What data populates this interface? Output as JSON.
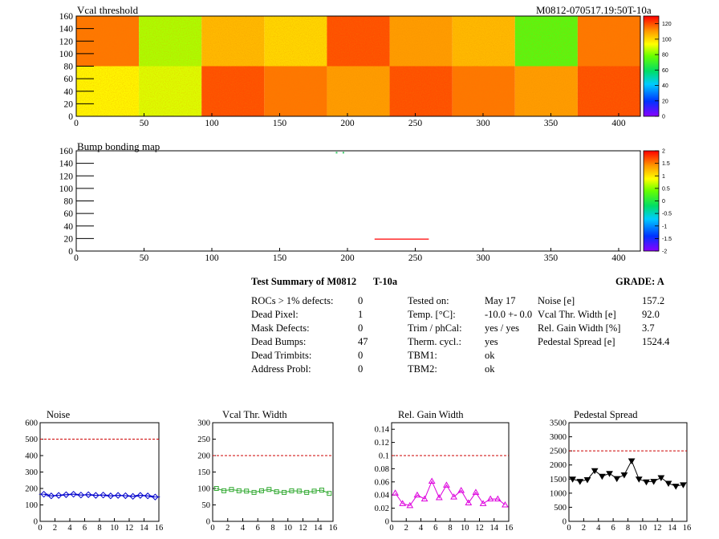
{
  "header_right": "M0812-070517.19:50T-10a",
  "maps": [
    {
      "title": "Vcal threshold",
      "xlim": [
        0,
        416
      ],
      "ylim": [
        0,
        160
      ],
      "x_ticks": [
        0,
        50,
        100,
        150,
        200,
        250,
        300,
        350,
        400
      ],
      "y_ticks": [
        0,
        20,
        40,
        60,
        80,
        100,
        120,
        140,
        160
      ],
      "z_ticks": [
        0,
        20,
        40,
        60,
        80,
        100,
        120
      ],
      "z_range": [
        0,
        130
      ],
      "roc_levels_top": [
        115,
        85,
        105,
        100,
        120,
        110,
        105,
        75,
        115
      ],
      "roc_levels_bottom": [
        95,
        90,
        120,
        115,
        110,
        120,
        115,
        110,
        120
      ]
    },
    {
      "title": "Bump bonding map",
      "xlim": [
        0,
        416
      ],
      "ylim": [
        0,
        160
      ],
      "x_ticks": [
        0,
        50,
        100,
        150,
        200,
        250,
        300,
        350,
        400
      ],
      "y_ticks": [
        0,
        20,
        40,
        60,
        80,
        100,
        120,
        140,
        160
      ],
      "z_ticks": [
        -2,
        -1.5,
        -1,
        -0.5,
        0,
        0.5,
        1,
        1.5,
        2
      ],
      "z_range": [
        -2,
        2
      ],
      "defect_segment": {
        "x0": 220,
        "x1": 260,
        "y": 19
      },
      "dead_pixel_marks": [
        {
          "x": 192,
          "y": 157
        },
        {
          "x": 197,
          "y": 157
        }
      ]
    }
  ],
  "summary": {
    "title": "Test Summary of M0812",
    "temp_label": "T-10a",
    "grade": "GRADE:  A",
    "col1": [
      {
        "label": "ROCs > 1% defects:",
        "value": "0"
      },
      {
        "label": "Dead Pixel:",
        "value": "1"
      },
      {
        "label": "Mask Defects:",
        "value": "0"
      },
      {
        "label": "Dead Bumps:",
        "value": "47"
      },
      {
        "label": "Dead Trimbits:",
        "value": "0"
      },
      {
        "label": "Address Probl:",
        "value": "0"
      }
    ],
    "col2": [
      {
        "label": "Tested on:",
        "value": "May 17"
      },
      {
        "label": "Temp. [°C]:",
        "value": "-10.0 +- 0.0"
      },
      {
        "label": "Trim / phCal:",
        "value": "yes / yes"
      },
      {
        "label": "Therm. cycl.:",
        "value": "yes"
      },
      {
        "label": "TBM1:",
        "value": "ok"
      },
      {
        "label": "TBM2:",
        "value": "ok"
      }
    ],
    "col3": [
      {
        "label": "Noise [e]",
        "value": "157.2"
      },
      {
        "label": "Vcal Thr. Width [e]",
        "value": "92.0"
      },
      {
        "label": "Rel. Gain Width [%]",
        "value": "3.7"
      },
      {
        "label": "Pedestal Spread [e]",
        "value": "1524.4"
      }
    ]
  },
  "chart_data": [
    {
      "type": "line",
      "title": "Noise",
      "x": [
        0,
        1,
        2,
        3,
        4,
        5,
        6,
        7,
        8,
        9,
        10,
        11,
        12,
        13,
        14,
        15
      ],
      "values": [
        165,
        155,
        158,
        162,
        165,
        160,
        162,
        158,
        160,
        155,
        158,
        156,
        152,
        158,
        155,
        148
      ],
      "xlim": [
        0,
        16
      ],
      "ylim": [
        0,
        600
      ],
      "x_ticks": [
        0,
        2,
        4,
        6,
        8,
        10,
        12,
        14,
        16
      ],
      "y_ticks": [
        0,
        100,
        200,
        300,
        400,
        500,
        600
      ],
      "limit": 500,
      "color": "#0000cc",
      "marker": "diamond"
    },
    {
      "type": "line",
      "title": "Vcal Thr. Width",
      "x": [
        0,
        1,
        2,
        3,
        4,
        5,
        6,
        7,
        8,
        9,
        10,
        11,
        12,
        13,
        14,
        15
      ],
      "values": [
        100,
        93,
        97,
        93,
        92,
        88,
        93,
        97,
        90,
        88,
        93,
        92,
        88,
        92,
        95,
        85
      ],
      "xlim": [
        0,
        16
      ],
      "ylim": [
        0,
        300
      ],
      "x_ticks": [
        0,
        2,
        4,
        6,
        8,
        10,
        12,
        14,
        16
      ],
      "y_ticks": [
        0,
        50,
        100,
        150,
        200,
        250,
        300
      ],
      "limit": 200,
      "color": "#33aa33",
      "marker": "square"
    },
    {
      "type": "line",
      "title": "Rel. Gain Width",
      "x": [
        0,
        1,
        2,
        3,
        4,
        5,
        6,
        7,
        8,
        9,
        10,
        11,
        12,
        13,
        14,
        15
      ],
      "values": [
        0.043,
        0.027,
        0.024,
        0.04,
        0.034,
        0.061,
        0.036,
        0.055,
        0.037,
        0.047,
        0.028,
        0.044,
        0.027,
        0.034,
        0.034,
        0.025
      ],
      "xlim": [
        0,
        16
      ],
      "ylim": [
        0,
        0.15
      ],
      "x_ticks": [
        0,
        2,
        4,
        6,
        8,
        10,
        12,
        14,
        16
      ],
      "y_ticks": [
        0,
        0.02,
        0.04,
        0.06,
        0.08,
        0.1,
        0.12,
        0.14
      ],
      "limit": 0.1,
      "color": "#dd00dd",
      "marker": "triangle"
    },
    {
      "type": "line",
      "title": "Pedestal Spread",
      "x": [
        0,
        1,
        2,
        3,
        4,
        5,
        6,
        7,
        8,
        9,
        10,
        11,
        12,
        13,
        14,
        15
      ],
      "values": [
        1500,
        1420,
        1480,
        1800,
        1600,
        1700,
        1520,
        1650,
        2150,
        1500,
        1400,
        1420,
        1550,
        1350,
        1250,
        1300
      ],
      "xlim": [
        0,
        16
      ],
      "ylim": [
        0,
        3500
      ],
      "x_ticks": [
        0,
        2,
        4,
        6,
        8,
        10,
        12,
        14,
        16
      ],
      "y_ticks": [
        0,
        500,
        1000,
        1500,
        2000,
        2500,
        3000,
        3500
      ],
      "limit": 2500,
      "color": "#000000",
      "marker": "triangle-down"
    }
  ]
}
